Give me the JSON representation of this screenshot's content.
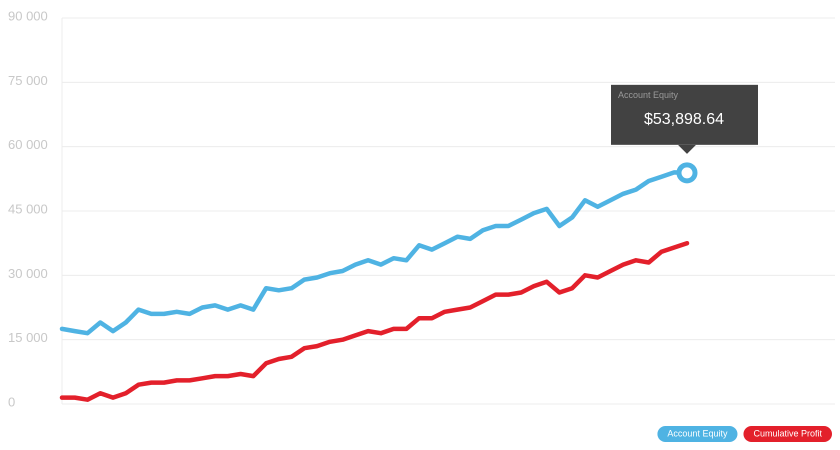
{
  "chart_data": {
    "type": "line",
    "categories": [
      null,
      null,
      null,
      null,
      null,
      null,
      null,
      null,
      null,
      null,
      null,
      null,
      null,
      null,
      null,
      null,
      null,
      null,
      null,
      null,
      null,
      null,
      null,
      null,
      null,
      null,
      null,
      null,
      null,
      null,
      null,
      null,
      null,
      null,
      null,
      null,
      null,
      null,
      null,
      null,
      null,
      null,
      null,
      null,
      null,
      null,
      null,
      null,
      null,
      null
    ],
    "series": [
      {
        "name": "Account Equity",
        "color": "#4fb3e3",
        "values": [
          17500,
          17000,
          16500,
          19000,
          17000,
          19000,
          22000,
          21000,
          21000,
          21500,
          21000,
          22500,
          23000,
          22000,
          23000,
          22000,
          27000,
          26500,
          27000,
          29000,
          29500,
          30500,
          31000,
          32500,
          33500,
          32500,
          34000,
          33500,
          37000,
          36000,
          37500,
          39000,
          38500,
          40500,
          41500,
          41500,
          43000,
          44500,
          45500,
          41500,
          43500,
          47500,
          46000,
          47500,
          49000,
          50000,
          52000,
          53000,
          54000,
          53898.64
        ]
      },
      {
        "name": "Cumulative Profit",
        "color": "#e3202b",
        "values": [
          1500,
          1500,
          1000,
          2500,
          1500,
          2500,
          4500,
          5000,
          5000,
          5500,
          5500,
          6000,
          6500,
          6500,
          7000,
          6500,
          9500,
          10500,
          11000,
          13000,
          13500,
          14500,
          15000,
          16000,
          17000,
          16500,
          17500,
          17500,
          20000,
          20000,
          21500,
          22000,
          22500,
          24000,
          25500,
          25500,
          26000,
          27500,
          28500,
          26000,
          27000,
          30000,
          29500,
          31000,
          32500,
          33500,
          33000,
          35500,
          36500,
          37500
        ]
      }
    ],
    "ylim": [
      0,
      90000
    ],
    "yticks": [
      0,
      {
        "value": 15000,
        "label": "15 000"
      },
      {
        "value": 30000,
        "label": "30 000"
      },
      {
        "value": 45000,
        "label": "45 000"
      },
      {
        "value": 60000,
        "label": "60 000"
      },
      {
        "value": 75000,
        "label": "75 000"
      },
      {
        "value": 90000,
        "label": "90 000"
      }
    ],
    "grid": true,
    "legend": "bottom-right",
    "tooltip": {
      "title": "Account Equity",
      "text": "$53,898.64"
    }
  }
}
